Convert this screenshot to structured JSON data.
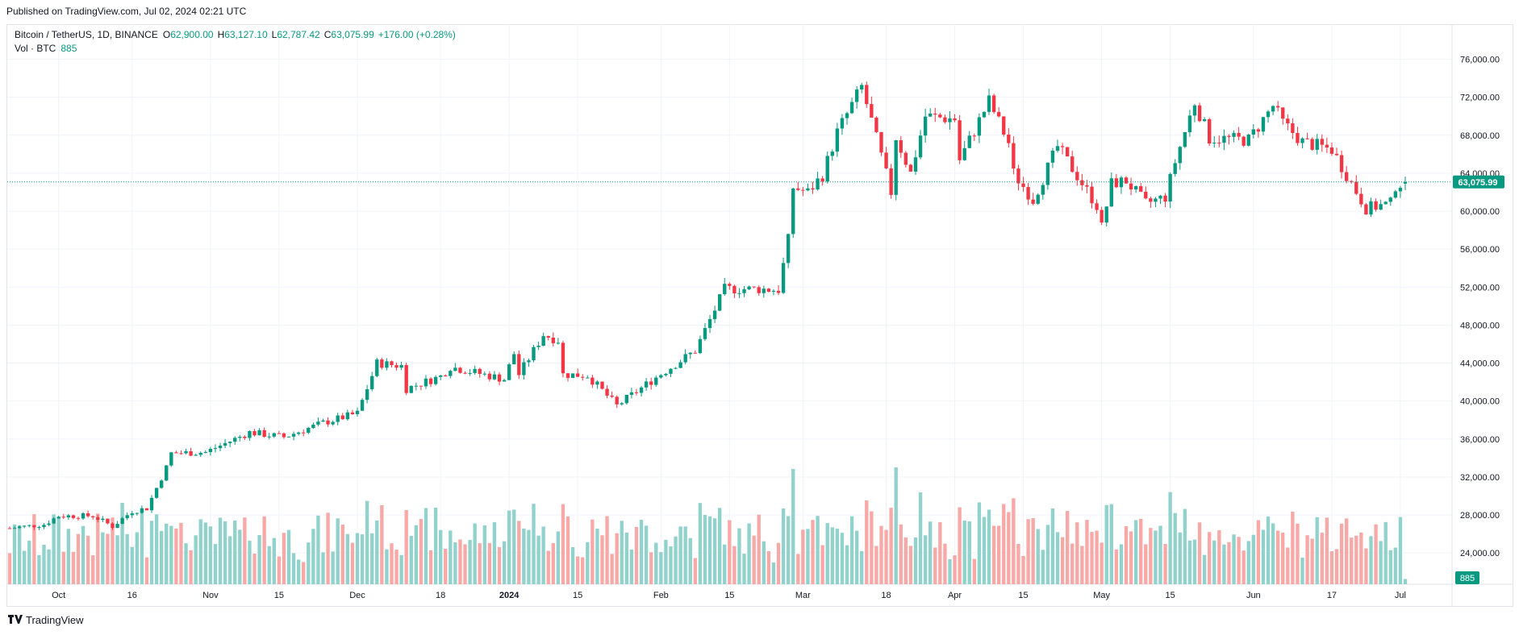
{
  "header": {
    "published": "Published on TradingView.com, Jul 02, 2024 02:21 UTC"
  },
  "legend": {
    "symbol": "Bitcoin / TetherUS, 1D, BINANCE",
    "open_label": "O",
    "open": "62,900.00",
    "high_label": "H",
    "high": "63,127.10",
    "low_label": "L",
    "low": "62,787.42",
    "close_label": "C",
    "close": "63,075.99",
    "change": "+176.00 (+0.28%)",
    "volume_label": "Vol · BTC",
    "volume": "885"
  },
  "footer": {
    "brand": "TradingView",
    "logo_icon": "tradingview-logo-icon"
  },
  "colors": {
    "up": "#089981",
    "down": "#f23645",
    "vol_up": "#92d2cc",
    "vol_down": "#f7a9a7",
    "grid": "#f0f3fa",
    "price_line": "#089981"
  },
  "chart_data": {
    "type": "candlestick",
    "symbol": "BTCUSDT",
    "interval": "1D",
    "exchange": "BINANCE",
    "y_axis": {
      "ticks": [
        24000,
        28000,
        32000,
        36000,
        40000,
        44000,
        48000,
        52000,
        56000,
        60000,
        64000,
        68000,
        72000,
        76000
      ],
      "tick_labels": [
        "24,000.00",
        "28,000.00",
        "32,000.00",
        "36,000.00",
        "40,000.00",
        "44,000.00",
        "48,000.00",
        "52,000.00",
        "56,000.00",
        "60,000.00",
        "64,000.00",
        "68,000.00",
        "72,000.00",
        "76,000.00"
      ],
      "range": [
        20700,
        78000
      ]
    },
    "x_axis": {
      "labels": [
        {
          "text": "Oct",
          "date": "2023-10-01"
        },
        {
          "text": "16",
          "date": "2023-10-16"
        },
        {
          "text": "Nov",
          "date": "2023-11-01"
        },
        {
          "text": "15",
          "date": "2023-11-15"
        },
        {
          "text": "Dec",
          "date": "2023-12-01"
        },
        {
          "text": "18",
          "date": "2023-12-18"
        },
        {
          "text": "2024",
          "date": "2024-01-01"
        },
        {
          "text": "15",
          "date": "2024-01-15"
        },
        {
          "text": "Feb",
          "date": "2024-02-01"
        },
        {
          "text": "15",
          "date": "2024-02-15"
        },
        {
          "text": "Mar",
          "date": "2024-03-01"
        },
        {
          "text": "18",
          "date": "2024-03-18"
        },
        {
          "text": "Apr",
          "date": "2024-04-01"
        },
        {
          "text": "15",
          "date": "2024-04-15"
        },
        {
          "text": "May",
          "date": "2024-05-01"
        },
        {
          "text": "15",
          "date": "2024-05-15"
        },
        {
          "text": "Jun",
          "date": "2024-06-01"
        },
        {
          "text": "17",
          "date": "2024-06-17"
        },
        {
          "text": "Jul",
          "date": "2024-07-01"
        }
      ],
      "range": [
        "2023-09-21",
        "2024-07-02"
      ]
    },
    "last_price": {
      "value": 63075.99,
      "label": "63,075.99"
    },
    "last_volume": {
      "label": "885"
    },
    "close_anchors": [
      [
        "2023-09-21",
        26600
      ],
      [
        "2023-09-28",
        27000
      ],
      [
        "2023-10-01",
        27900
      ],
      [
        "2023-10-08",
        27900
      ],
      [
        "2023-10-12",
        26800
      ],
      [
        "2023-10-16",
        28400
      ],
      [
        "2023-10-19",
        28700
      ],
      [
        "2023-10-23",
        33000
      ],
      [
        "2023-10-24",
        34500
      ],
      [
        "2023-10-31",
        34600
      ],
      [
        "2023-11-09",
        36700
      ],
      [
        "2023-11-16",
        36200
      ],
      [
        "2023-11-24",
        37700
      ],
      [
        "2023-12-01",
        38700
      ],
      [
        "2023-12-05",
        44000
      ],
      [
        "2023-12-10",
        43700
      ],
      [
        "2023-12-11",
        41300
      ],
      [
        "2023-12-18",
        42600
      ],
      [
        "2023-12-20",
        43600
      ],
      [
        "2023-12-31",
        42300
      ],
      [
        "2024-01-02",
        45000
      ],
      [
        "2024-01-03",
        42800
      ],
      [
        "2024-01-08",
        47000
      ],
      [
        "2024-01-11",
        46400
      ],
      [
        "2024-01-12",
        42800
      ],
      [
        "2024-01-17",
        42700
      ],
      [
        "2024-01-23",
        39500
      ],
      [
        "2024-01-31",
        42500
      ],
      [
        "2024-02-08",
        45300
      ],
      [
        "2024-02-14",
        51800
      ],
      [
        "2024-02-21",
        51800
      ],
      [
        "2024-02-25",
        51700
      ],
      [
        "2024-02-27",
        57000
      ],
      [
        "2024-02-28",
        62500
      ],
      [
        "2024-03-02",
        62000
      ],
      [
        "2024-03-05",
        63800
      ],
      [
        "2024-03-08",
        68300
      ],
      [
        "2024-03-13",
        73100
      ],
      [
        "2024-03-15",
        69500
      ],
      [
        "2024-03-19",
        62000
      ],
      [
        "2024-03-20",
        67800
      ],
      [
        "2024-03-23",
        64000
      ],
      [
        "2024-03-26",
        70000
      ],
      [
        "2024-04-01",
        69700
      ],
      [
        "2024-04-02",
        65400
      ],
      [
        "2024-04-08",
        71600
      ],
      [
        "2024-04-12",
        67200
      ],
      [
        "2024-04-13",
        64000
      ],
      [
        "2024-04-17",
        61200
      ],
      [
        "2024-04-22",
        66800
      ],
      [
        "2024-04-25",
        64500
      ],
      [
        "2024-04-30",
        60600
      ],
      [
        "2024-05-01",
        58300
      ],
      [
        "2024-05-03",
        62900
      ],
      [
        "2024-05-06",
        63200
      ],
      [
        "2024-05-10",
        60800
      ],
      [
        "2024-05-14",
        61500
      ],
      [
        "2024-05-16",
        65200
      ],
      [
        "2024-05-20",
        71500
      ],
      [
        "2024-05-23",
        67700
      ],
      [
        "2024-05-31",
        67500
      ],
      [
        "2024-06-05",
        71100
      ],
      [
        "2024-06-07",
        69300
      ],
      [
        "2024-06-11",
        67300
      ],
      [
        "2024-06-17",
        66500
      ],
      [
        "2024-06-24",
        60300
      ],
      [
        "2024-06-29",
        60800
      ],
      [
        "2024-06-30",
        62700
      ],
      [
        "2024-07-02",
        63076
      ]
    ]
  }
}
